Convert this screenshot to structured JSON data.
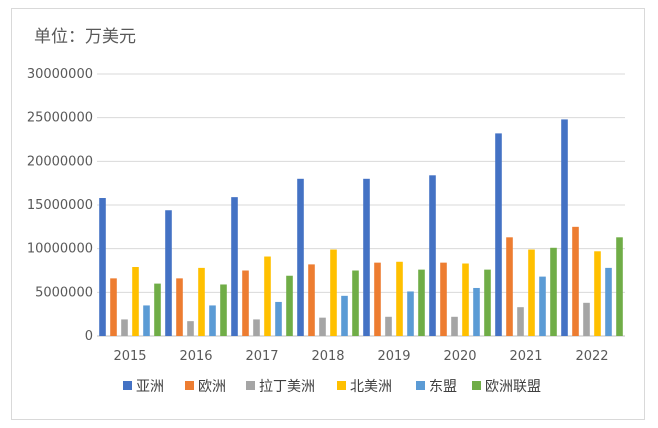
{
  "chart_data": {
    "type": "bar",
    "unit_label": "单位：万美元",
    "categories": [
      "2015",
      "2016",
      "2017",
      "2018",
      "2019",
      "2020",
      "2021",
      "2022"
    ],
    "ylim": [
      0,
      30000000
    ],
    "yticks": [
      "0",
      "5000000",
      "10000000",
      "15000000",
      "20000000",
      "25000000",
      "30000000"
    ],
    "ytick_values": [
      0,
      5000000,
      10000000,
      15000000,
      20000000,
      25000000,
      30000000
    ],
    "grid": true,
    "legend_position": "bottom",
    "series": [
      {
        "name": "亚洲",
        "color": "#4472C4",
        "values": [
          15800000,
          14400000,
          15900000,
          18000000,
          18000000,
          18400000,
          23200000,
          24800000
        ]
      },
      {
        "name": "欧洲",
        "color": "#ED7D31",
        "values": [
          6600000,
          6600000,
          7500000,
          8200000,
          8400000,
          8400000,
          11300000,
          12500000
        ]
      },
      {
        "name": "拉丁美洲",
        "color": "#A5A5A5",
        "values": [
          1900000,
          1700000,
          1900000,
          2100000,
          2200000,
          2200000,
          3300000,
          3800000
        ]
      },
      {
        "name": "北美洲",
        "color": "#FFC000",
        "values": [
          7900000,
          7800000,
          9100000,
          9900000,
          8500000,
          8300000,
          9900000,
          9700000
        ]
      },
      {
        "name": "东盟",
        "color": "#5B9BD5",
        "values": [
          3500000,
          3500000,
          3900000,
          4600000,
          5100000,
          5500000,
          6800000,
          7800000
        ]
      },
      {
        "name": "欧洲联盟",
        "color": "#70AD47",
        "values": [
          6000000,
          5900000,
          6900000,
          7500000,
          7600000,
          7600000,
          10100000,
          11300000
        ]
      }
    ]
  }
}
